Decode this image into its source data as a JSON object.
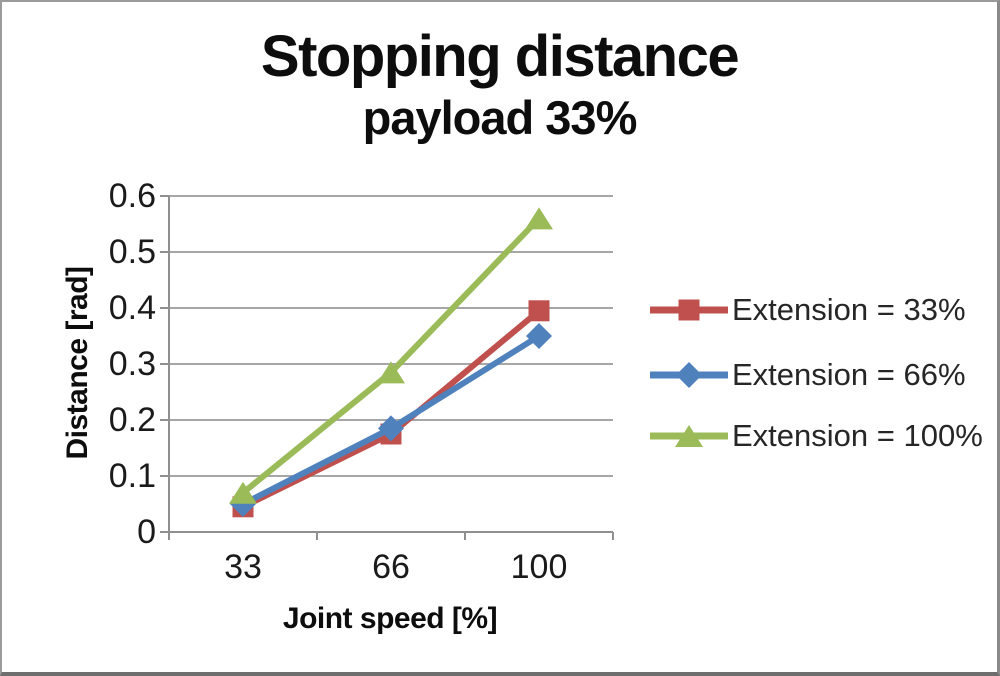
{
  "chart": {
    "title": "Stopping distance",
    "subtitle": "payload 33%"
  },
  "chart_data": {
    "type": "line",
    "title": "Stopping distance",
    "subtitle": "payload 33%",
    "xlabel": "Joint speed [%]",
    "ylabel": "Distance [rad]",
    "x_categories": [
      "33",
      "66",
      "100"
    ],
    "xtick_labels": [
      "33",
      "66",
      "100"
    ],
    "ytick_labels": [
      "0.6",
      "0.5",
      "0.4",
      "0.3",
      "0.2",
      "0.1",
      "0"
    ],
    "ylim": [
      0,
      0.6
    ],
    "ytick_step": 0.1,
    "grid": true,
    "legend_position": "right",
    "series": [
      {
        "name": "Extension = 33%",
        "marker": "square",
        "color": "#C0504D",
        "values": [
          0.045,
          0.175,
          0.395
        ]
      },
      {
        "name": "Extension = 66%",
        "marker": "diamond",
        "color": "#4F81BD",
        "values": [
          0.05,
          0.185,
          0.35
        ]
      },
      {
        "name": "Extension = 100%",
        "marker": "triangle",
        "color": "#9BBB59",
        "values": [
          0.07,
          0.285,
          0.56
        ]
      }
    ],
    "colors": {
      "gridline": "#a6a6a6",
      "axis": "#8f8f8f",
      "text": "#1a1a1a",
      "background": "#ffffff"
    }
  }
}
